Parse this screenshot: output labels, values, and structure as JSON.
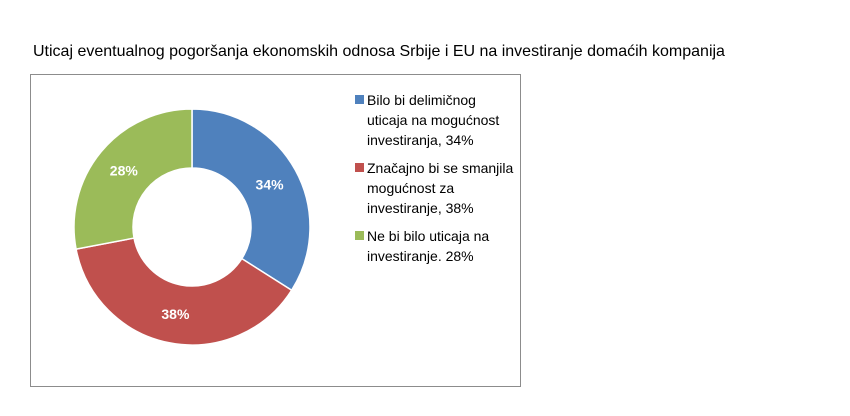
{
  "chart_data": {
    "type": "pie",
    "title": "Uticaj eventualnog pogoršanja ekonomskih odnosa Srbije i EU na investiranje domaćih kompanija",
    "slices": [
      {
        "label": "Bilo bi delimičnog uticaja na mogućnost investiranja, 34%",
        "value": 34,
        "data_label": "34%",
        "color": "#4f81bd"
      },
      {
        "label": "Značajno bi se smanjila mogućnost za investiranje, 38%",
        "value": 38,
        "data_label": "38%",
        "color": "#c0504d"
      },
      {
        "label": "Ne bi bilo uticaja na investiranje. 28%",
        "value": 28,
        "data_label": "28%",
        "color": "#9bbb59"
      }
    ],
    "legend_position": "right",
    "donut": true
  }
}
